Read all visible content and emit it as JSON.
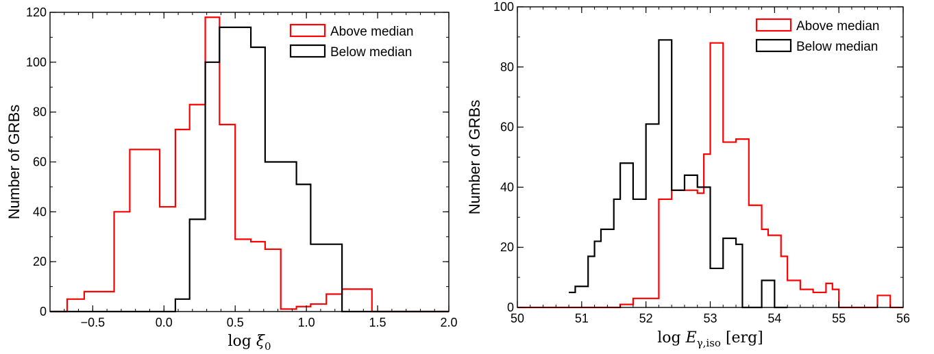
{
  "chart_data": [
    {
      "type": "histogram",
      "xlabel": "log ξ0",
      "ylabel": "Number of GRBs",
      "xlim": [
        -0.8,
        2.0
      ],
      "ylim": [
        0,
        120
      ],
      "xticks": [
        -0.5,
        0.0,
        0.5,
        1.0,
        1.5,
        2.0
      ],
      "xtick_labels": [
        "−0.5",
        "0.0",
        "0.5",
        "1.0",
        "1.5",
        "2.0"
      ],
      "yticks": [
        0,
        20,
        40,
        60,
        80,
        100,
        120
      ],
      "ytick_labels": [
        "0",
        "20",
        "40",
        "60",
        "80",
        "100",
        "120"
      ],
      "legend": {
        "position": "top-right"
      },
      "series": [
        {
          "name": "Above median",
          "color": "#ff0000",
          "edges": [
            -0.8,
            -0.68,
            -0.56,
            -0.46,
            -0.35,
            -0.24,
            -0.13,
            -0.03,
            0.08,
            0.18,
            0.29,
            0.39,
            0.5,
            0.61,
            0.71,
            0.82,
            0.93,
            1.03,
            1.14,
            1.25,
            1.35,
            1.46,
            2.0
          ],
          "values": [
            0,
            5,
            8,
            8,
            40,
            65,
            65,
            42,
            73,
            83,
            118,
            75,
            29,
            28,
            25,
            1,
            2,
            3,
            7,
            9,
            9,
            0
          ]
        },
        {
          "name": "Below median",
          "color": "#000000",
          "edges": [
            -0.8,
            0.08,
            0.18,
            0.29,
            0.39,
            0.5,
            0.61,
            0.71,
            0.82,
            0.93,
            1.03,
            1.14,
            1.25,
            1.3,
            2.0
          ],
          "values": [
            0,
            5,
            37,
            100,
            114,
            114,
            106,
            60,
            60,
            51,
            27,
            27,
            0,
            0
          ]
        }
      ]
    },
    {
      "type": "histogram",
      "xlabel": "log Eγ,iso [erg]",
      "ylabel": "Number of GRBs",
      "xlim": [
        50,
        56
      ],
      "ylim": [
        0,
        100
      ],
      "xticks": [
        50,
        51,
        52,
        53,
        54,
        55,
        56
      ],
      "xtick_labels": [
        "50",
        "51",
        "52",
        "53",
        "54",
        "55",
        "56"
      ],
      "yticks": [
        0,
        20,
        40,
        60,
        80,
        100
      ],
      "ytick_labels": [
        "0",
        "20",
        "40",
        "60",
        "80",
        "100"
      ],
      "legend": {
        "position": "top-right"
      },
      "series": [
        {
          "name": "Above median",
          "color": "#ff0000",
          "edges": [
            50.0,
            51.6,
            51.8,
            52.2,
            52.4,
            52.6,
            52.8,
            52.9,
            53.0,
            53.2,
            53.4,
            53.6,
            53.8,
            53.9,
            54.1,
            54.2,
            54.4,
            54.6,
            54.8,
            54.9,
            55.0,
            55.2,
            55.6,
            55.8,
            56.0
          ],
          "values": [
            0,
            1,
            3,
            36,
            39,
            39,
            38,
            51,
            88,
            55,
            56,
            34,
            26,
            24,
            17,
            9,
            6,
            5,
            8,
            6,
            0,
            0,
            4,
            0
          ]
        },
        {
          "name": "Below median",
          "color": "#000000",
          "edges": [
            50.8,
            50.9,
            51.1,
            51.2,
            51.3,
            51.5,
            51.6,
            51.8,
            52.0,
            52.2,
            52.4,
            52.6,
            52.8,
            53.0,
            53.2,
            53.3,
            53.4,
            53.5,
            53.6,
            53.8,
            54.0,
            54.2
          ],
          "values": [
            5,
            7,
            17,
            22,
            26,
            36,
            48,
            36,
            61,
            89,
            39,
            44,
            40,
            13,
            23,
            23,
            21,
            0,
            0,
            9,
            0
          ]
        }
      ]
    }
  ],
  "legend_labels": {
    "above": "Above median",
    "below": "Below median"
  }
}
